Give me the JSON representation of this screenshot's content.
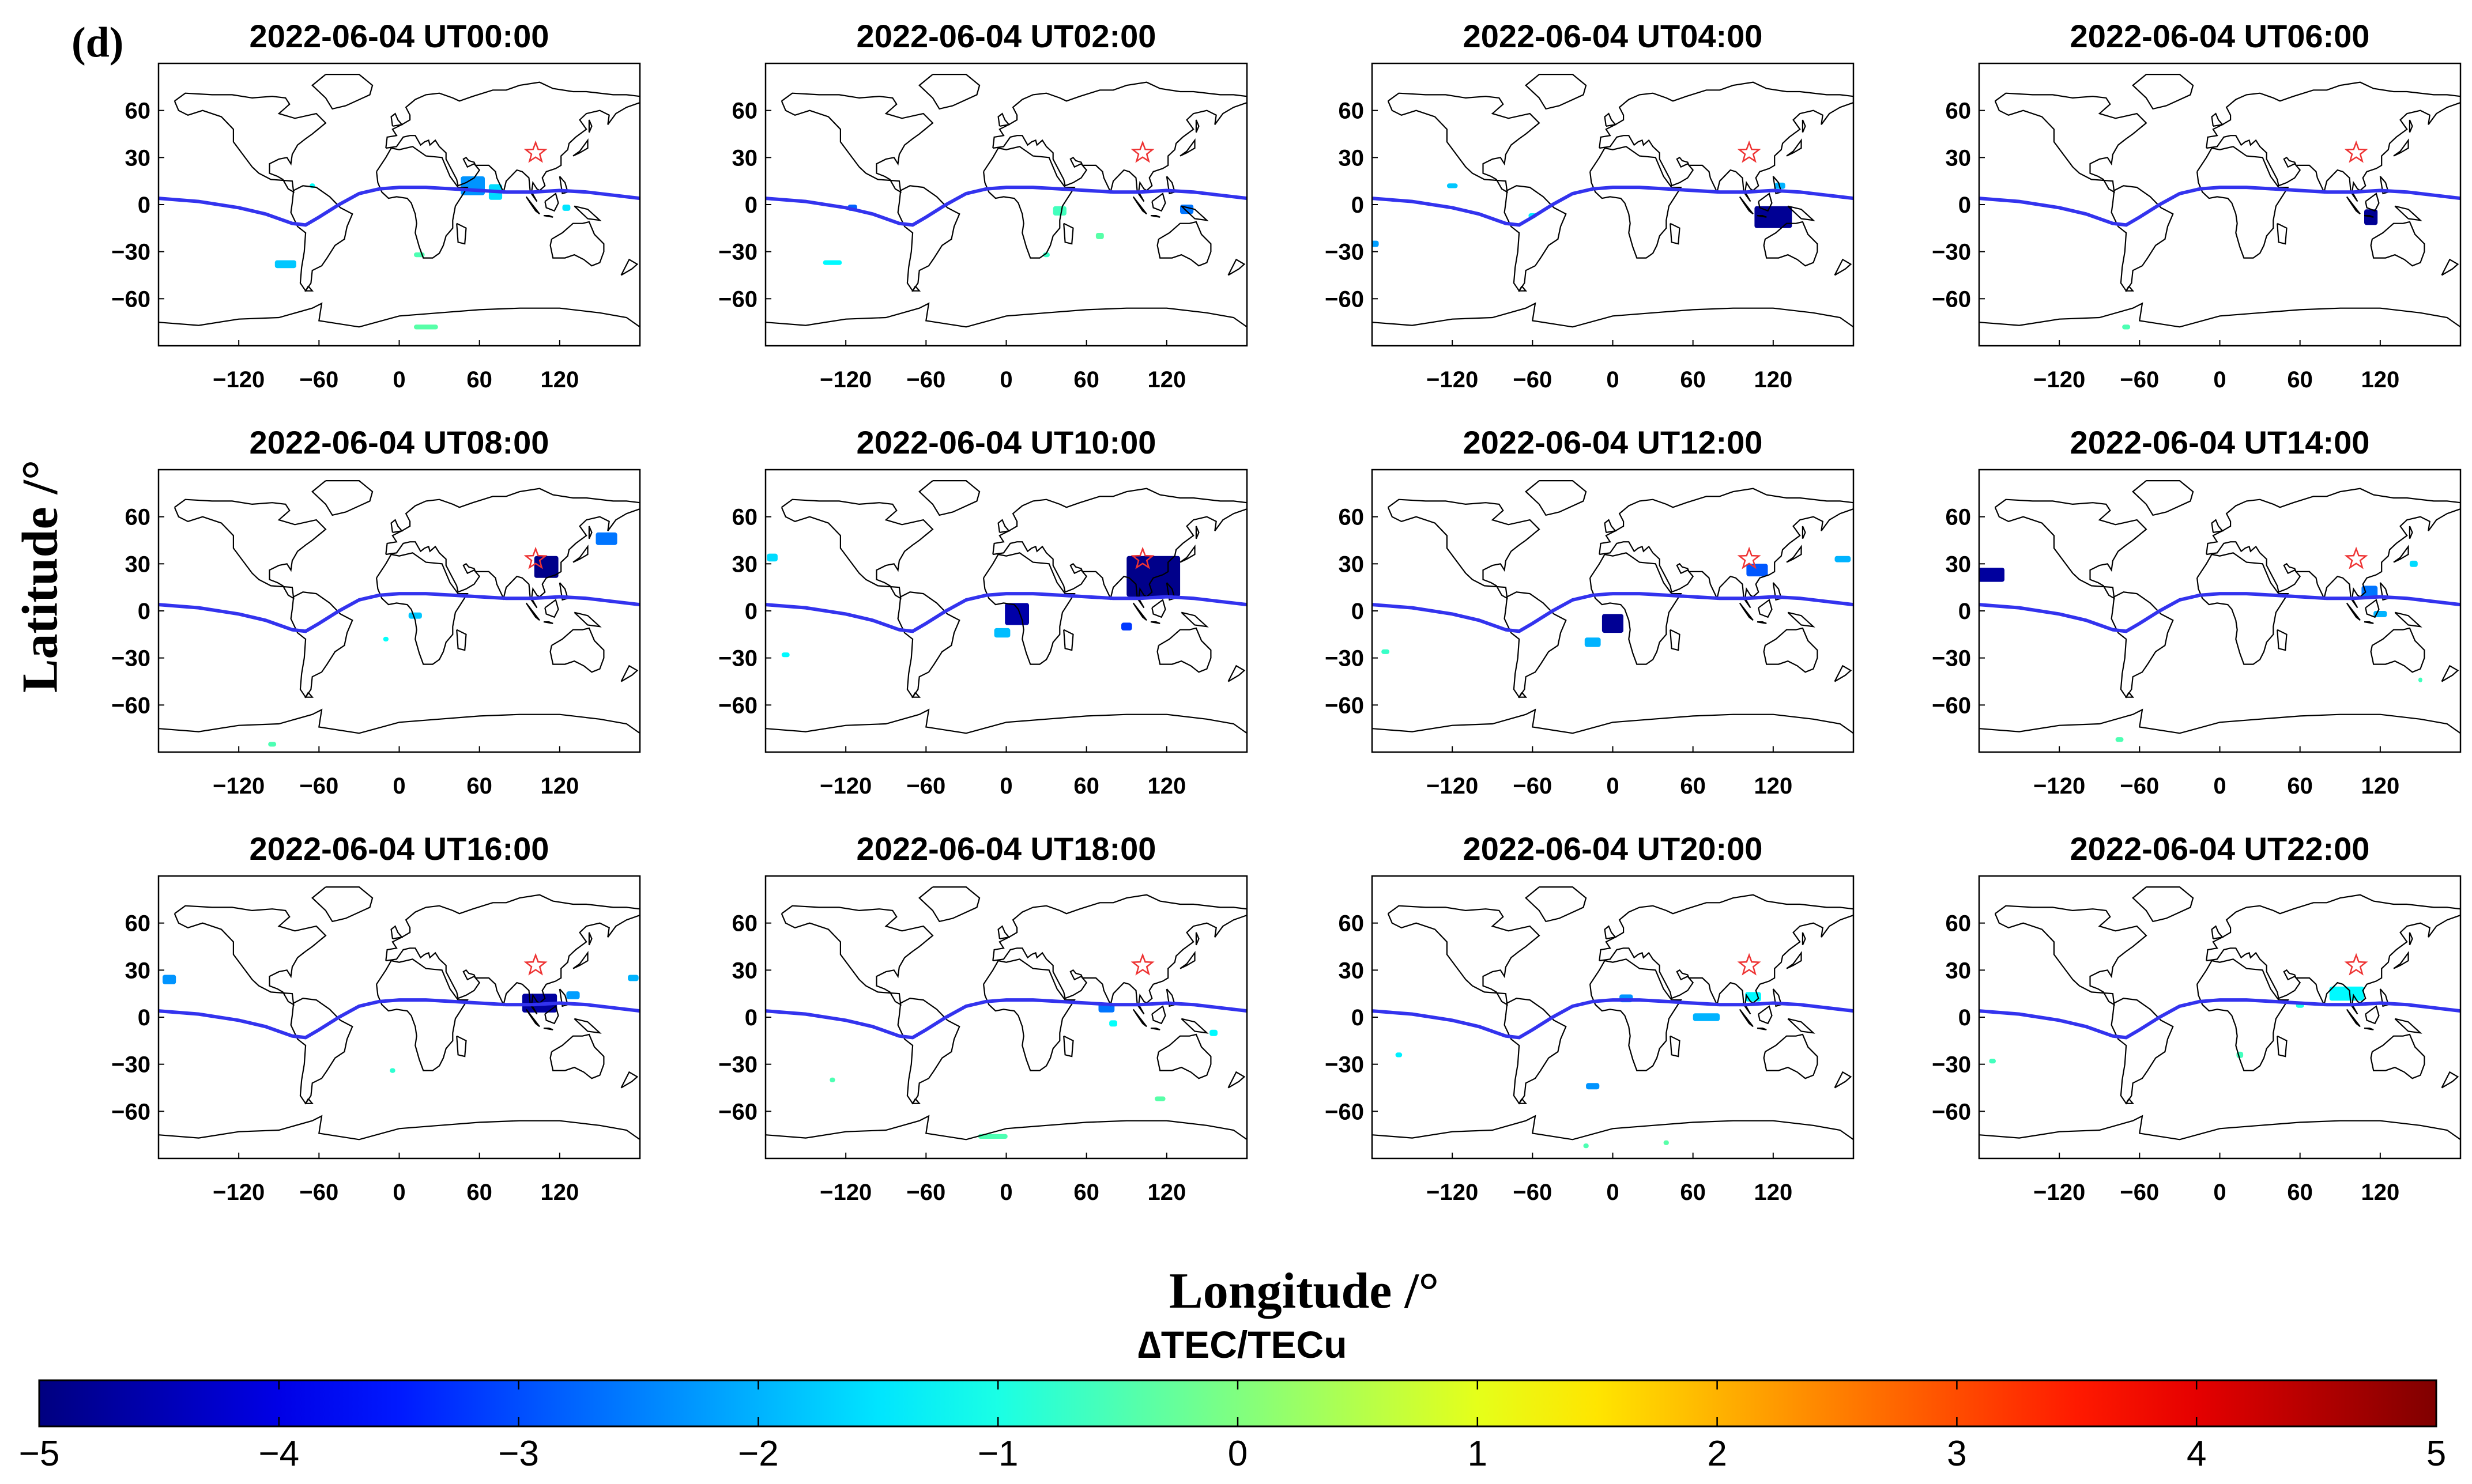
{
  "figure": {
    "panel_label": "(d)",
    "ylabel": "Latitude /°",
    "xlabel": "Longitude /°",
    "colorbar_title": "∆TEC/TECu"
  },
  "colors": {
    "equator_line": "#3333ee",
    "epicenter_star": "#ee3333",
    "coastline": "#000000"
  },
  "chart_data": {
    "type": "heatmap",
    "description_grid": "12 global maps of TEC anomaly",
    "xlim": [
      -180,
      180
    ],
    "ylim": [
      -90,
      90
    ],
    "xticks": [
      -120,
      -60,
      0,
      60,
      120
    ],
    "yticks": [
      60,
      30,
      0,
      -30,
      -60
    ],
    "xtick_labels": [
      "−120",
      "−60",
      "0",
      "60",
      "120"
    ],
    "ytick_labels": [
      "60",
      "30",
      "0",
      "−30",
      "−60"
    ],
    "epicenter": {
      "lon": 102,
      "lat": 33
    },
    "magnetic_equator": [
      [
        -180,
        4
      ],
      [
        -150,
        2
      ],
      [
        -120,
        -2
      ],
      [
        -100,
        -6
      ],
      [
        -80,
        -12
      ],
      [
        -70,
        -13
      ],
      [
        -60,
        -8
      ],
      [
        -45,
        0
      ],
      [
        -30,
        7
      ],
      [
        -15,
        10
      ],
      [
        0,
        11
      ],
      [
        20,
        11
      ],
      [
        40,
        10
      ],
      [
        60,
        9
      ],
      [
        80,
        8
      ],
      [
        100,
        8
      ],
      [
        120,
        9
      ],
      [
        140,
        8
      ],
      [
        160,
        6
      ],
      [
        180,
        4
      ]
    ],
    "colorbar": {
      "min": -5,
      "max": 5,
      "ticks": [
        -5,
        -4,
        -3,
        -2,
        -1,
        0,
        1,
        2,
        3,
        4,
        5
      ],
      "tick_labels": [
        "−5",
        "−4",
        "−3",
        "−2",
        "−1",
        "0",
        "1",
        "2",
        "3",
        "4",
        "5"
      ]
    },
    "panels": [
      {
        "title": "2022-06-04 UT00:00",
        "anomalies": [
          {
            "lon": 55,
            "lat": 12,
            "w": 18,
            "h": 12,
            "v": -2.3
          },
          {
            "lon": 72,
            "lat": 8,
            "w": 10,
            "h": 10,
            "v": -1.6
          },
          {
            "lon": -85,
            "lat": -38,
            "w": 16,
            "h": 5,
            "v": -1.8
          },
          {
            "lon": -65,
            "lat": 12,
            "w": 4,
            "h": 3,
            "v": -1.2
          },
          {
            "lon": 15,
            "lat": -32,
            "w": 8,
            "h": 3,
            "v": -0.5
          },
          {
            "lon": 20,
            "lat": -78,
            "w": 18,
            "h": 3,
            "v": -0.4
          },
          {
            "lon": 125,
            "lat": -2,
            "w": 6,
            "h": 4,
            "v": -1.5
          }
        ]
      },
      {
        "title": "2022-06-04 UT02:00",
        "anomalies": [
          {
            "lon": -115,
            "lat": -2,
            "w": 7,
            "h": 4,
            "v": -2.8
          },
          {
            "lon": -130,
            "lat": -37,
            "w": 14,
            "h": 3,
            "v": -1.3
          },
          {
            "lon": 40,
            "lat": -4,
            "w": 10,
            "h": 6,
            "v": -0.6
          },
          {
            "lon": 70,
            "lat": -20,
            "w": 6,
            "h": 4,
            "v": -0.4
          },
          {
            "lon": 135,
            "lat": -3,
            "w": 10,
            "h": 6,
            "v": -2.6
          },
          {
            "lon": 30,
            "lat": -32,
            "w": 5,
            "h": 3,
            "v": -0.7
          }
        ]
      },
      {
        "title": "2022-06-04 UT04:00",
        "anomalies": [
          {
            "lon": 120,
            "lat": -8,
            "w": 28,
            "h": 14,
            "v": -4.8
          },
          {
            "lon": 125,
            "lat": 12,
            "w": 8,
            "h": 4,
            "v": -2.0
          },
          {
            "lon": -178,
            "lat": -25,
            "w": 6,
            "h": 4,
            "v": -2.2
          },
          {
            "lon": -120,
            "lat": 12,
            "w": 8,
            "h": 3,
            "v": -1.8
          },
          {
            "lon": -60,
            "lat": -7,
            "w": 6,
            "h": 3,
            "v": -1.4
          }
        ]
      },
      {
        "title": "2022-06-04 UT06:00",
        "anomalies": [
          {
            "lon": 113,
            "lat": -8,
            "w": 10,
            "h": 10,
            "v": -4.8
          },
          {
            "lon": -70,
            "lat": -78,
            "w": 6,
            "h": 3,
            "v": -0.5
          }
        ]
      },
      {
        "title": "2022-06-04 UT08:00",
        "anomalies": [
          {
            "lon": 110,
            "lat": 28,
            "w": 18,
            "h": 14,
            "v": -4.9
          },
          {
            "lon": 155,
            "lat": 46,
            "w": 16,
            "h": 8,
            "v": -2.6
          },
          {
            "lon": 12,
            "lat": -3,
            "w": 10,
            "h": 4,
            "v": -1.8
          },
          {
            "lon": -10,
            "lat": -18,
            "w": 4,
            "h": 3,
            "v": -1.2
          },
          {
            "lon": -95,
            "lat": -85,
            "w": 6,
            "h": 3,
            "v": -0.5
          }
        ]
      },
      {
        "title": "2022-06-04 UT10:00",
        "anomalies": [
          {
            "lon": 110,
            "lat": 22,
            "w": 40,
            "h": 26,
            "v": -4.9
          },
          {
            "lon": 8,
            "lat": -2,
            "w": 18,
            "h": 14,
            "v": -4.6
          },
          {
            "lon": -3,
            "lat": -14,
            "w": 12,
            "h": 6,
            "v": -1.9
          },
          {
            "lon": -175,
            "lat": 34,
            "w": 8,
            "h": 5,
            "v": -1.6
          },
          {
            "lon": -165,
            "lat": -28,
            "w": 6,
            "h": 3,
            "v": -1.3
          },
          {
            "lon": 90,
            "lat": -10,
            "w": 8,
            "h": 5,
            "v": -3.2
          }
        ]
      },
      {
        "title": "2022-06-04 UT12:00",
        "anomalies": [
          {
            "lon": 0,
            "lat": -8,
            "w": 16,
            "h": 12,
            "v": -4.8
          },
          {
            "lon": -15,
            "lat": -20,
            "w": 12,
            "h": 6,
            "v": -2.0
          },
          {
            "lon": 108,
            "lat": 26,
            "w": 16,
            "h": 8,
            "v": -2.9
          },
          {
            "lon": 172,
            "lat": 33,
            "w": 12,
            "h": 4,
            "v": -2.0
          },
          {
            "lon": -170,
            "lat": -26,
            "w": 6,
            "h": 3,
            "v": -0.7
          }
        ]
      },
      {
        "title": "2022-06-04 UT14:00",
        "anomalies": [
          {
            "lon": -172,
            "lat": 23,
            "w": 22,
            "h": 9,
            "v": -4.7
          },
          {
            "lon": 112,
            "lat": 12,
            "w": 12,
            "h": 8,
            "v": -2.6
          },
          {
            "lon": 120,
            "lat": -2,
            "w": 10,
            "h": 4,
            "v": -2.0
          },
          {
            "lon": 145,
            "lat": 30,
            "w": 6,
            "h": 4,
            "v": -1.6
          },
          {
            "lon": -75,
            "lat": -82,
            "w": 6,
            "h": 3,
            "v": -0.5
          },
          {
            "lon": 150,
            "lat": -44,
            "w": 3,
            "h": 3,
            "v": -0.6
          }
        ]
      },
      {
        "title": "2022-06-04 UT16:00",
        "anomalies": [
          {
            "lon": 105,
            "lat": 9,
            "w": 26,
            "h": 12,
            "v": -4.7
          },
          {
            "lon": 130,
            "lat": 14,
            "w": 10,
            "h": 5,
            "v": -2.2
          },
          {
            "lon": -172,
            "lat": 24,
            "w": 10,
            "h": 6,
            "v": -2.3
          },
          {
            "lon": 175,
            "lat": 25,
            "w": 8,
            "h": 4,
            "v": -2.0
          },
          {
            "lon": -5,
            "lat": -34,
            "w": 4,
            "h": 3,
            "v": -0.8
          }
        ]
      },
      {
        "title": "2022-06-04 UT18:00",
        "anomalies": [
          {
            "lon": 75,
            "lat": 6,
            "w": 12,
            "h": 6,
            "v": -2.6
          },
          {
            "lon": 80,
            "lat": -4,
            "w": 6,
            "h": 4,
            "v": -1.2
          },
          {
            "lon": -10,
            "lat": -76,
            "w": 22,
            "h": 3,
            "v": -0.5
          },
          {
            "lon": -130,
            "lat": -40,
            "w": 4,
            "h": 3,
            "v": -0.5
          },
          {
            "lon": 115,
            "lat": -52,
            "w": 8,
            "h": 3,
            "v": -0.4
          },
          {
            "lon": 155,
            "lat": -10,
            "w": 6,
            "h": 4,
            "v": -1.3
          }
        ]
      },
      {
        "title": "2022-06-04 UT20:00",
        "anomalies": [
          {
            "lon": 10,
            "lat": 12,
            "w": 10,
            "h": 5,
            "v": -2.3
          },
          {
            "lon": 70,
            "lat": 0,
            "w": 20,
            "h": 5,
            "v": -2.0
          },
          {
            "lon": -15,
            "lat": -44,
            "w": 10,
            "h": 4,
            "v": -2.3
          },
          {
            "lon": -160,
            "lat": -24,
            "w": 5,
            "h": 3,
            "v": -1.4
          },
          {
            "lon": 105,
            "lat": 13,
            "w": 12,
            "h": 6,
            "v": -1.3
          },
          {
            "lon": -20,
            "lat": -82,
            "w": 4,
            "h": 3,
            "v": -0.5
          },
          {
            "lon": 40,
            "lat": -80,
            "w": 4,
            "h": 3,
            "v": -0.4
          }
        ]
      },
      {
        "title": "2022-06-04 UT22:00",
        "anomalies": [
          {
            "lon": 95,
            "lat": 15,
            "w": 26,
            "h": 9,
            "v": -1.3
          },
          {
            "lon": 15,
            "lat": -24,
            "w": 5,
            "h": 4,
            "v": -0.6
          },
          {
            "lon": -170,
            "lat": -28,
            "w": 5,
            "h": 3,
            "v": -0.6
          },
          {
            "lon": 60,
            "lat": 8,
            "w": 6,
            "h": 4,
            "v": -1.0
          }
        ]
      }
    ]
  }
}
